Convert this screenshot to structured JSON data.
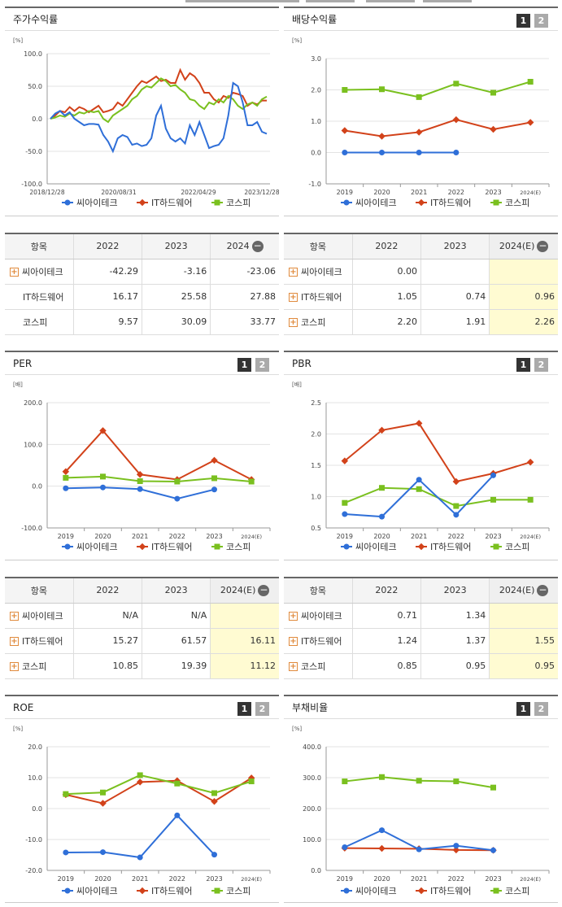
{
  "colors": {
    "sai": "#2f6fd8",
    "it": "#d2421a",
    "kospi": "#7ac01f"
  },
  "legend": [
    "씨아이테크",
    "IT하드웨어",
    "코스피"
  ],
  "pg": {
    "one": "1",
    "two": "2"
  },
  "stock": {
    "title": "주가수익률",
    "unit": "[%]",
    "yticks": [
      "100.0",
      "50.0",
      "0.0",
      "-50.0",
      "-100.0"
    ],
    "xticks": [
      "2018/12/28",
      "2020/08/31",
      "2022/04/29",
      "2023/12/28"
    ],
    "ylim": [
      -100,
      100
    ],
    "sai": [
      0,
      8,
      12,
      5,
      10,
      0,
      -5,
      -10,
      -8,
      -8,
      -9,
      -25,
      -35,
      -50,
      -30,
      -25,
      -28,
      -40,
      -38,
      -42,
      -40,
      -30,
      5,
      20,
      -15,
      -30,
      -35,
      -30,
      -38,
      -10,
      -25,
      -5,
      -25,
      -45,
      -42,
      -40,
      -30,
      5,
      55,
      50,
      25,
      -10,
      -10,
      -5,
      -20,
      -23
    ],
    "it": [
      0,
      5,
      12,
      10,
      18,
      12,
      18,
      15,
      10,
      15,
      20,
      10,
      12,
      15,
      25,
      20,
      30,
      40,
      50,
      58,
      55,
      60,
      65,
      58,
      60,
      55,
      55,
      75,
      60,
      70,
      65,
      55,
      40,
      40,
      30,
      25,
      35,
      32,
      40,
      38,
      35,
      20,
      25,
      22,
      28,
      28
    ],
    "kospi": [
      0,
      2,
      5,
      3,
      8,
      5,
      10,
      8,
      12,
      10,
      12,
      0,
      -5,
      5,
      10,
      15,
      20,
      30,
      35,
      45,
      50,
      48,
      55,
      62,
      58,
      50,
      52,
      45,
      40,
      30,
      28,
      20,
      15,
      25,
      22,
      30,
      25,
      35,
      30,
      20,
      15,
      22,
      25,
      20,
      30,
      34
    ]
  },
  "stockTable": {
    "head": [
      "항목",
      "2022",
      "2023",
      "2024"
    ],
    "rows": [
      {
        "name": "씨아이테크",
        "plus": true,
        "v": [
          "-42.29",
          "-3.16",
          "-23.06"
        ]
      },
      {
        "name": "IT하드웨어",
        "plus": false,
        "v": [
          "16.17",
          "25.58",
          "27.88"
        ]
      },
      {
        "name": "코스피",
        "plus": false,
        "v": [
          "9.57",
          "30.09",
          "33.77"
        ]
      }
    ]
  },
  "div": {
    "title": "배당수익률",
    "unit": "[%]",
    "yticks": [
      "3.0",
      "2.0",
      "1.0",
      "0.0",
      "-1.0"
    ],
    "ylim": [
      -1,
      3
    ],
    "xticks": [
      "2019",
      "2020",
      "2021",
      "2022",
      "2023",
      "2024(E)"
    ],
    "sai": [
      0,
      0,
      0,
      0,
      null,
      null
    ],
    "it": [
      0.7,
      0.52,
      0.65,
      1.05,
      0.74,
      0.96
    ],
    "kospi": [
      2.0,
      2.02,
      1.77,
      2.2,
      1.91,
      2.26
    ]
  },
  "divTable": {
    "head": [
      "항목",
      "2022",
      "2023",
      "2024(E)"
    ],
    "rows": [
      {
        "name": "씨아이테크",
        "v": [
          "0.00",
          "",
          ""
        ]
      },
      {
        "name": "IT하드웨어",
        "v": [
          "1.05",
          "0.74",
          "0.96"
        ]
      },
      {
        "name": "코스피",
        "v": [
          "2.20",
          "1.91",
          "2.26"
        ]
      }
    ]
  },
  "per": {
    "title": "PER",
    "unit": "[배]",
    "yticks": [
      "200.0",
      "100.0",
      "0.0",
      "-100.0"
    ],
    "ylim": [
      -100,
      200
    ],
    "xticks": [
      "2019",
      "2020",
      "2021",
      "2022",
      "2023",
      "2024(E)"
    ],
    "sai": [
      -5,
      -3,
      -7,
      -30,
      -8,
      null
    ],
    "it": [
      35,
      133,
      28,
      16,
      62,
      16
    ],
    "kospi": [
      20,
      23,
      12,
      11,
      19,
      11
    ]
  },
  "perTable": {
    "head": [
      "항목",
      "2022",
      "2023",
      "2024(E)"
    ],
    "rows": [
      {
        "name": "씨아이테크",
        "v": [
          "N/A",
          "N/A",
          ""
        ]
      },
      {
        "name": "IT하드웨어",
        "v": [
          "15.27",
          "61.57",
          "16.11"
        ]
      },
      {
        "name": "코스피",
        "v": [
          "10.85",
          "19.39",
          "11.12"
        ]
      }
    ]
  },
  "pbr": {
    "title": "PBR",
    "unit": "[배]",
    "yticks": [
      "2.5",
      "2.0",
      "1.5",
      "1.0",
      "0.5"
    ],
    "ylim": [
      0.5,
      2.5
    ],
    "xticks": [
      "2019",
      "2020",
      "2021",
      "2022",
      "2023",
      "2024(E)"
    ],
    "sai": [
      0.72,
      0.68,
      1.27,
      0.71,
      1.34,
      null
    ],
    "it": [
      1.57,
      2.06,
      2.17,
      1.24,
      1.37,
      1.55
    ],
    "kospi": [
      0.9,
      1.14,
      1.12,
      0.85,
      0.95,
      0.95
    ]
  },
  "pbrTable": {
    "head": [
      "항목",
      "2022",
      "2023",
      "2024(E)"
    ],
    "rows": [
      {
        "name": "씨아이테크",
        "v": [
          "0.71",
          "1.34",
          ""
        ]
      },
      {
        "name": "IT하드웨어",
        "v": [
          "1.24",
          "1.37",
          "1.55"
        ]
      },
      {
        "name": "코스피",
        "v": [
          "0.85",
          "0.95",
          "0.95"
        ]
      }
    ]
  },
  "roe": {
    "title": "ROE",
    "unit": "[%]",
    "yticks": [
      "20.0",
      "10.0",
      "0.0",
      "-10.0",
      "-20.0"
    ],
    "ylim": [
      -20,
      20
    ],
    "xticks": [
      "2019",
      "2020",
      "2021",
      "2022",
      "2023",
      "2024(E)"
    ],
    "sai": [
      -14.2,
      -14.1,
      -15.8,
      -2.2,
      -14.9,
      null
    ],
    "it": [
      4.5,
      1.7,
      8.6,
      9.0,
      2.3,
      9.9
    ],
    "kospi": [
      4.7,
      5.2,
      10.8,
      8.1,
      5.0,
      8.8
    ]
  },
  "debt": {
    "title": "부채비율",
    "unit": "[%]",
    "yticks": [
      "400.0",
      "300.0",
      "200.0",
      "100.0",
      "0.0"
    ],
    "ylim": [
      0,
      400
    ],
    "xticks": [
      "2019",
      "2020",
      "2021",
      "2022",
      "2023",
      "2024(E)"
    ],
    "sai": [
      75,
      130,
      68,
      80,
      65,
      null
    ],
    "it": [
      72,
      71,
      70,
      66,
      65,
      null
    ],
    "kospi": [
      288,
      302,
      290,
      288,
      268,
      null
    ]
  }
}
